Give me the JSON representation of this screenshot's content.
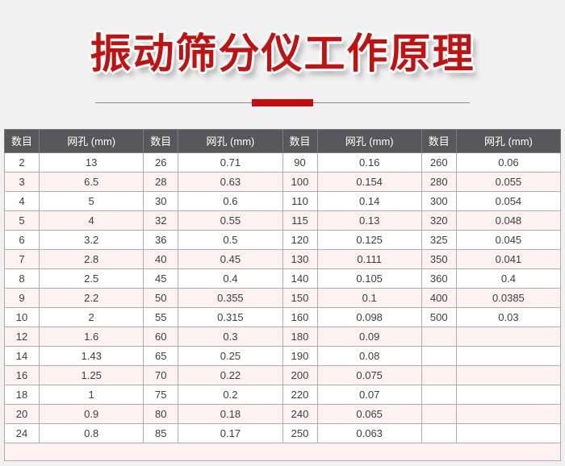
{
  "title": {
    "text": "振动筛分仪工作原理"
  },
  "colors": {
    "page-bg": "#f1f1f1",
    "accent": "#c11212",
    "accent-bar": "#c40d0d",
    "divider-line": "#8c8c8c",
    "header-bg": "#58585a",
    "header-border": "#7a7a7c",
    "row-alt": "#fdf2f0",
    "border": "#b2acac",
    "outer-border": "#9a9a9a",
    "text": "#3d3d3d"
  },
  "table": {
    "headers": [
      "数目",
      "网孔 (mm)",
      "数目",
      "网孔 (mm)",
      "数目",
      "网孔 (mm)",
      "数目",
      "网孔 (mm)"
    ],
    "rows": [
      [
        "2",
        "13",
        "26",
        "0.71",
        "90",
        "0.16",
        "260",
        "0.06"
      ],
      [
        "3",
        "6.5",
        "28",
        "0.63",
        "100",
        "0.154",
        "280",
        "0.055"
      ],
      [
        "4",
        "5",
        "30",
        "0.6",
        "110",
        "0.14",
        "300",
        "0.054"
      ],
      [
        "5",
        "4",
        "32",
        "0.55",
        "115",
        "0.13",
        "320",
        "0.048"
      ],
      [
        "6",
        "3.2",
        "36",
        "0.5",
        "120",
        "0.125",
        "325",
        "0.045"
      ],
      [
        "7",
        "2.8",
        "40",
        "0.45",
        "130",
        "0.111",
        "350",
        "0.041"
      ],
      [
        "8",
        "2.5",
        "45",
        "0.4",
        "140",
        "0.105",
        "360",
        "0.4"
      ],
      [
        "9",
        "2.2",
        "50",
        "0.355",
        "150",
        "0.1",
        "400",
        "0.0385"
      ],
      [
        "10",
        "2",
        "55",
        "0.315",
        "160",
        "0.098",
        "500",
        "0.03"
      ],
      [
        "12",
        "1.6",
        "60",
        "0.3",
        "180",
        "0.09",
        "",
        ""
      ],
      [
        "14",
        "1.43",
        "65",
        "0.25",
        "190",
        "0.08",
        "",
        ""
      ],
      [
        "16",
        "1.25",
        "70",
        "0.22",
        "200",
        "0.075",
        "",
        ""
      ],
      [
        "18",
        "1",
        "75",
        "0.2",
        "220",
        "0.07",
        "",
        ""
      ],
      [
        "20",
        "0.9",
        "80",
        "0.18",
        "240",
        "0.065",
        "",
        ""
      ],
      [
        "24",
        "0.8",
        "85",
        "0.17",
        "250",
        "0.063",
        "",
        ""
      ]
    ]
  }
}
